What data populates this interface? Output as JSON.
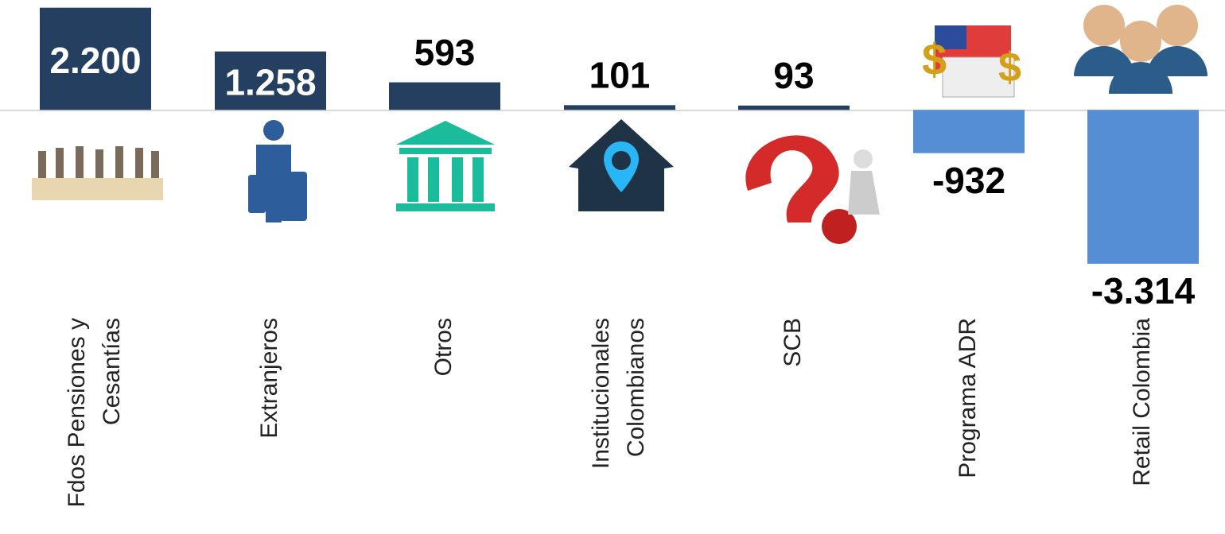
{
  "chart_data": {
    "type": "bar",
    "categories": [
      "Fdos Pensiones y Cesantías",
      "Extranjeros",
      "Otros",
      "Institucionales Colombianos",
      "SCB",
      "Programa ADR",
      "Retail Colombia"
    ],
    "values": [
      2200,
      1258,
      593,
      101,
      93,
      -932,
      -3314
    ],
    "value_labels": [
      "2.200",
      "1.258",
      "593",
      "101",
      "93",
      "-932",
      "-3.314"
    ],
    "colors": [
      "#243f60",
      "#243f60",
      "#243f60",
      "#243f60",
      "#243f60",
      "#558ed5",
      "#558ed5"
    ],
    "ylim": [
      -4000,
      2400
    ]
  }
}
